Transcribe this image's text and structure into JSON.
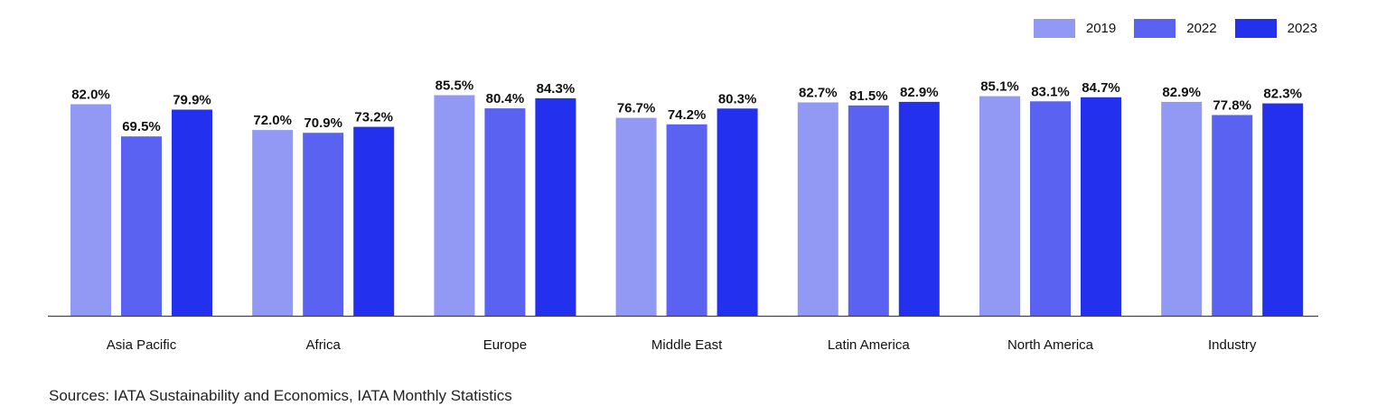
{
  "chart_data": {
    "type": "bar",
    "categories": [
      "Asia Pacific",
      "Africa",
      "Europe",
      "Middle East",
      "Latin America",
      "North America",
      "Industry"
    ],
    "series": [
      {
        "name": "2019",
        "color": "#9299f5",
        "values": [
          82.0,
          72.0,
          85.5,
          76.7,
          82.7,
          85.1,
          82.9
        ]
      },
      {
        "name": "2022",
        "color": "#5a62f1",
        "values": [
          69.5,
          70.9,
          80.4,
          74.2,
          81.5,
          83.1,
          77.8
        ]
      },
      {
        "name": "2023",
        "color": "#2331ef",
        "values": [
          79.9,
          73.2,
          84.3,
          80.3,
          82.9,
          84.7,
          82.3
        ]
      }
    ],
    "data_labels": [
      [
        "82.0%",
        "69.5%",
        "79.9%"
      ],
      [
        "72.0%",
        "70.9%",
        "73.2%"
      ],
      [
        "85.5%",
        "80.4%",
        "84.3%"
      ],
      [
        "76.7%",
        "74.2%",
        "80.3%"
      ],
      [
        "82.7%",
        "81.5%",
        "82.9%"
      ],
      [
        "85.1%",
        "83.1%",
        "84.7%"
      ],
      [
        "82.9%",
        "77.8%",
        "82.3%"
      ]
    ],
    "legend_position": "top-right",
    "grid": false,
    "ylim": [
      0,
      100
    ]
  },
  "footer": {
    "source": "Sources: IATA Sustainability and Economics, IATA Monthly Statistics"
  }
}
